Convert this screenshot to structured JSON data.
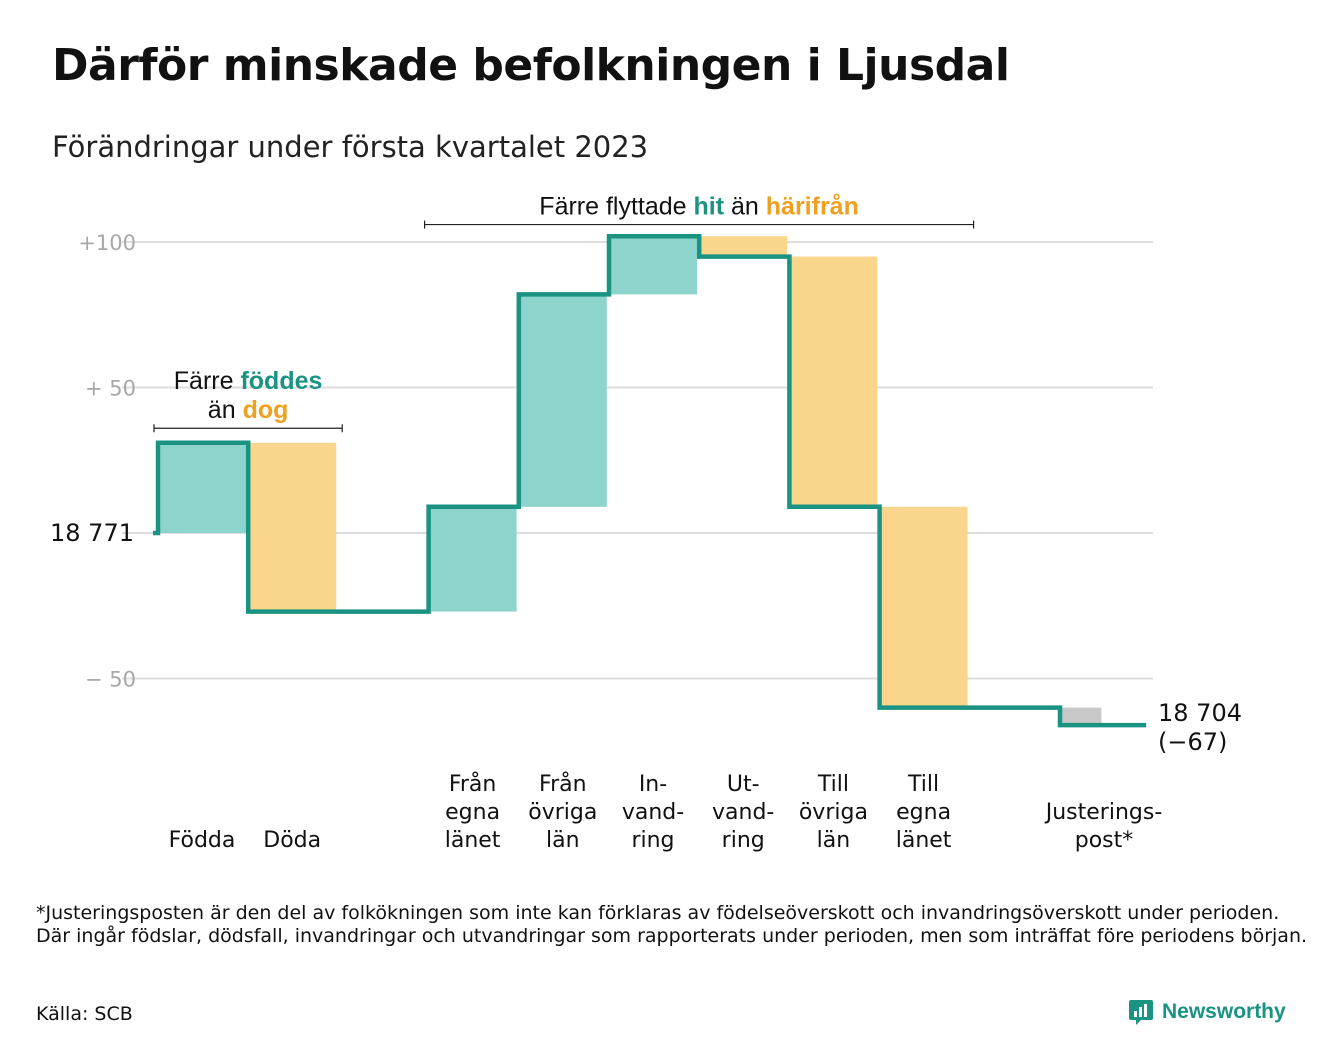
{
  "title": "Därför minskade befolkningen i Ljusdal",
  "subtitle": "Förändringar under första kvartalet 2023",
  "colors": {
    "inflow": "#8dd5cc",
    "outflow": "#fad58c",
    "adjustment": "#c8c8c8",
    "line": "#1a9383",
    "teal_text": "#1a9383",
    "orange_text": "#f0a020",
    "grid": "#dddddd",
    "tick_text": "#a8a8a8"
  },
  "chart_data": {
    "type": "waterfall",
    "start_value": 18771,
    "end_value": 18704,
    "start_label": "18 771",
    "end_label_lines": [
      "18 704",
      "(−67)"
    ],
    "ylim": [
      -75,
      105
    ],
    "y_ticks": [
      {
        "value": 100,
        "label": "+100"
      },
      {
        "value": 50,
        "label": "+ 50"
      },
      {
        "value": 0,
        "label": ""
      },
      {
        "value": -50,
        "label": "− 50"
      }
    ],
    "steps": [
      {
        "label_lines": [
          "Födda"
        ],
        "change": 31,
        "kind": "inflow"
      },
      {
        "label_lines": [
          "Döda"
        ],
        "change": -58,
        "kind": "outflow"
      },
      {
        "label_lines": [
          ""
        ],
        "change": 0,
        "kind": "gap"
      },
      {
        "label_lines": [
          "Från",
          "egna",
          "länet"
        ],
        "change": 36,
        "kind": "inflow"
      },
      {
        "label_lines": [
          "Från",
          "övriga",
          "län"
        ],
        "change": 73,
        "kind": "inflow"
      },
      {
        "label_lines": [
          "In-",
          "vand-",
          "ring"
        ],
        "change": 20,
        "kind": "inflow"
      },
      {
        "label_lines": [
          "Ut-",
          "vand-",
          "ring"
        ],
        "change": -7,
        "kind": "outflow"
      },
      {
        "label_lines": [
          "Till",
          "övriga",
          "län"
        ],
        "change": -86,
        "kind": "outflow"
      },
      {
        "label_lines": [
          "Till",
          "egna",
          "länet"
        ],
        "change": -69,
        "kind": "outflow"
      },
      {
        "label_lines": [
          ""
        ],
        "change": 0,
        "kind": "gap"
      },
      {
        "label_lines": [
          "Justerings-",
          "post*"
        ],
        "change": -6,
        "kind": "adjustment"
      }
    ],
    "annotations": [
      {
        "lines": [
          [
            {
              "text": "Färre ",
              "style": "plain"
            },
            {
              "text": "föddes",
              "style": "teal"
            }
          ],
          [
            {
              "text": "än ",
              "style": "plain"
            },
            {
              "text": "dog",
              "style": "orange"
            }
          ]
        ],
        "from_step": 0,
        "to_step": 1,
        "y_value": 36
      },
      {
        "lines": [
          [
            {
              "text": "Färre flyttade ",
              "style": "plain"
            },
            {
              "text": "hit",
              "style": "teal"
            },
            {
              "text": " än ",
              "style": "plain"
            },
            {
              "text": "härifrån",
              "style": "orange"
            }
          ]
        ],
        "from_step": 3,
        "to_step": 8,
        "y_value": 106
      }
    ]
  },
  "footnote": "*Justeringsposten är den del av folkökningen som inte kan förklaras av födelseöverskott och invandringsöverskott under perioden. Där ingår födslar, dödsfall, invandringar och utvandringar som rapporterats under perioden, men som inträffat före periodens början.",
  "source": "Källa: SCB",
  "brand": "Newsworthy"
}
